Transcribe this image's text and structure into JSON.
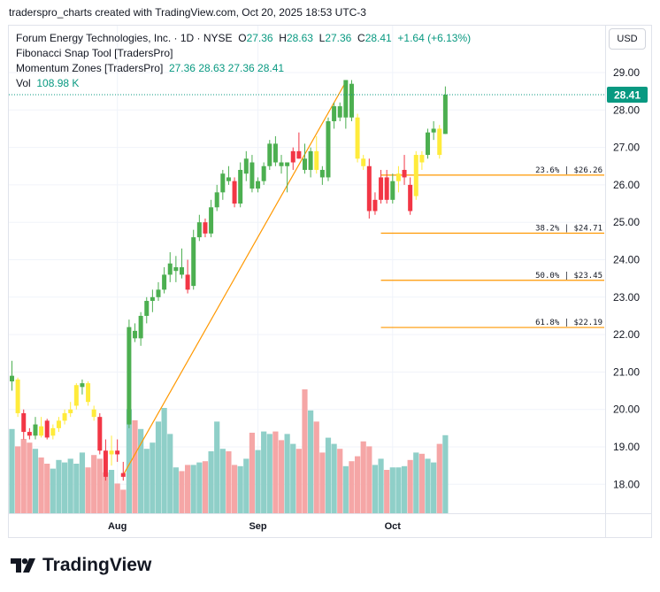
{
  "caption": "traderspro_charts created with TradingView.com, Oct 20, 2025 18:53 UTC-3",
  "legend": {
    "symbol": "Forum Energy Technologies, Inc. · 1D · NYSE",
    "o_label": "O",
    "o_value": "27.36",
    "h_label": "H",
    "h_value": "28.63",
    "l_label": "L",
    "l_value": "27.36",
    "c_label": "C",
    "c_value": "28.41",
    "change": "+1.64 (+6.13%)",
    "indicator1": "Fibonacci Snap Tool [TradersPro]",
    "indicator2": "Momentum Zones [TradersPro]",
    "indicator2_values": "27.36  28.63  27.36  28.41",
    "vol_label": "Vol",
    "vol_value": "108.98 K"
  },
  "currency": "USD",
  "brand": "TradingView",
  "colors": {
    "up": "#4caf50",
    "down": "#f23645",
    "neutral": "#ffeb3b",
    "vol_up": "#8fcfc8",
    "vol_down": "#f5a6a6",
    "fib": "#ff9800",
    "last_price": "#089981"
  },
  "chart_data": {
    "type": "candlestick",
    "ylim": [
      17.2,
      29.8
    ],
    "y_ticks": [
      "29.00",
      "28.00",
      "27.00",
      "26.00",
      "25.00",
      "24.00",
      "23.00",
      "22.00",
      "21.00",
      "20.00",
      "19.00",
      "18.00"
    ],
    "x_ticks": [
      {
        "label": "Aug",
        "bar": 18
      },
      {
        "label": "Sep",
        "bar": 42
      },
      {
        "label": "Oct",
        "bar": 65
      }
    ],
    "last_price": "28.41",
    "candles": [
      {
        "o": 20.75,
        "h": 21.3,
        "l": 20.5,
        "c": 20.9,
        "z": "g",
        "v": 0.68
      },
      {
        "o": 20.8,
        "h": 20.85,
        "l": 19.8,
        "c": 19.9,
        "z": "y",
        "v": 0.54
      },
      {
        "o": 19.9,
        "h": 20.0,
        "l": 19.2,
        "c": 19.4,
        "z": "r",
        "v": 0.6
      },
      {
        "o": 19.4,
        "h": 19.5,
        "l": 19.2,
        "c": 19.3,
        "z": "r",
        "v": 0.57
      },
      {
        "o": 19.3,
        "h": 19.8,
        "l": 19.2,
        "c": 19.6,
        "z": "g",
        "v": 0.52
      },
      {
        "o": 19.55,
        "h": 19.8,
        "l": 19.25,
        "c": 19.3,
        "z": "y",
        "v": 0.45
      },
      {
        "o": 19.7,
        "h": 19.75,
        "l": 19.2,
        "c": 19.25,
        "z": "r",
        "v": 0.4
      },
      {
        "o": 19.3,
        "h": 19.6,
        "l": 19.2,
        "c": 19.5,
        "z": "y",
        "v": 0.36
      },
      {
        "o": 19.5,
        "h": 19.8,
        "l": 19.4,
        "c": 19.7,
        "z": "y",
        "v": 0.43
      },
      {
        "o": 19.7,
        "h": 20.0,
        "l": 19.6,
        "c": 19.9,
        "z": "y",
        "v": 0.41
      },
      {
        "o": 19.9,
        "h": 20.2,
        "l": 19.8,
        "c": 20.0,
        "z": "y",
        "v": 0.44
      },
      {
        "o": 20.1,
        "h": 20.7,
        "l": 20.0,
        "c": 20.65,
        "z": "y",
        "v": 0.4
      },
      {
        "o": 20.6,
        "h": 20.8,
        "l": 20.4,
        "c": 20.7,
        "z": "g",
        "v": 0.49
      },
      {
        "o": 20.7,
        "h": 20.75,
        "l": 20.1,
        "c": 20.2,
        "z": "y",
        "v": 0.37
      },
      {
        "o": 20.0,
        "h": 20.1,
        "l": 19.7,
        "c": 19.8,
        "z": "y",
        "v": 0.47
      },
      {
        "o": 19.8,
        "h": 19.9,
        "l": 18.8,
        "c": 18.9,
        "z": "r",
        "v": 0.44
      },
      {
        "o": 18.9,
        "h": 19.2,
        "l": 18.1,
        "c": 18.2,
        "z": "r",
        "v": 0.33
      },
      {
        "o": 18.8,
        "h": 19.3,
        "l": 18.5,
        "c": 18.9,
        "z": "y",
        "v": 0.35
      },
      {
        "o": 18.9,
        "h": 19.2,
        "l": 18.6,
        "c": 18.8,
        "z": "r",
        "v": 0.24
      },
      {
        "o": 18.3,
        "h": 18.6,
        "l": 18.1,
        "c": 18.2,
        "z": "r",
        "v": 0.19
      },
      {
        "o": 19.6,
        "h": 22.4,
        "l": 19.5,
        "c": 22.2,
        "z": "g",
        "v": 0.84
      },
      {
        "o": 22.1,
        "h": 22.3,
        "l": 21.8,
        "c": 21.9,
        "z": "g",
        "v": 0.75
      },
      {
        "o": 21.9,
        "h": 22.6,
        "l": 21.7,
        "c": 22.5,
        "z": "g",
        "v": 0.68
      },
      {
        "o": 22.5,
        "h": 23.0,
        "l": 22.3,
        "c": 22.9,
        "z": "g",
        "v": 0.52
      },
      {
        "o": 22.9,
        "h": 23.2,
        "l": 22.6,
        "c": 23.0,
        "z": "g",
        "v": 0.57
      },
      {
        "o": 23.0,
        "h": 23.4,
        "l": 22.9,
        "c": 23.2,
        "z": "g",
        "v": 0.74
      },
      {
        "o": 23.2,
        "h": 23.8,
        "l": 23.1,
        "c": 23.6,
        "z": "g",
        "v": 0.85
      },
      {
        "o": 23.6,
        "h": 24.2,
        "l": 23.4,
        "c": 23.9,
        "z": "g",
        "v": 0.64
      },
      {
        "o": 23.7,
        "h": 24.1,
        "l": 23.4,
        "c": 23.8,
        "z": "g",
        "v": 0.37
      },
      {
        "o": 23.8,
        "h": 24.3,
        "l": 23.5,
        "c": 23.6,
        "z": "g",
        "v": 0.34
      },
      {
        "o": 23.6,
        "h": 24.0,
        "l": 23.1,
        "c": 23.2,
        "z": "r",
        "v": 0.39
      },
      {
        "o": 23.3,
        "h": 24.8,
        "l": 23.2,
        "c": 24.6,
        "z": "g",
        "v": 0.39
      },
      {
        "o": 24.6,
        "h": 25.2,
        "l": 24.5,
        "c": 25.0,
        "z": "g",
        "v": 0.41
      },
      {
        "o": 25.0,
        "h": 25.1,
        "l": 24.6,
        "c": 24.7,
        "z": "r",
        "v": 0.42
      },
      {
        "o": 24.7,
        "h": 25.6,
        "l": 24.6,
        "c": 25.4,
        "z": "g",
        "v": 0.5
      },
      {
        "o": 25.4,
        "h": 26.0,
        "l": 25.3,
        "c": 25.8,
        "z": "g",
        "v": 0.74
      },
      {
        "o": 25.8,
        "h": 26.4,
        "l": 25.6,
        "c": 26.3,
        "z": "g",
        "v": 0.52
      },
      {
        "o": 26.2,
        "h": 26.5,
        "l": 26.0,
        "c": 26.1,
        "z": "g",
        "v": 0.5
      },
      {
        "o": 26.1,
        "h": 26.2,
        "l": 25.4,
        "c": 25.5,
        "z": "r",
        "v": 0.39
      },
      {
        "o": 25.5,
        "h": 26.6,
        "l": 25.4,
        "c": 26.4,
        "z": "g",
        "v": 0.38
      },
      {
        "o": 26.3,
        "h": 26.9,
        "l": 26.1,
        "c": 26.7,
        "z": "g",
        "v": 0.44
      },
      {
        "o": 26.6,
        "h": 26.8,
        "l": 25.8,
        "c": 25.9,
        "z": "g",
        "v": 0.65
      },
      {
        "o": 25.9,
        "h": 26.2,
        "l": 25.8,
        "c": 26.1,
        "z": "g",
        "v": 0.51
      },
      {
        "o": 26.1,
        "h": 26.6,
        "l": 26.0,
        "c": 26.5,
        "z": "g",
        "v": 0.66
      },
      {
        "o": 26.5,
        "h": 27.2,
        "l": 26.4,
        "c": 27.1,
        "z": "g",
        "v": 0.64
      },
      {
        "o": 27.1,
        "h": 27.3,
        "l": 26.5,
        "c": 26.6,
        "z": "g",
        "v": 0.66
      },
      {
        "o": 26.6,
        "h": 26.8,
        "l": 26.3,
        "c": 26.5,
        "z": "g",
        "v": 0.59
      },
      {
        "o": 26.5,
        "h": 26.6,
        "l": 25.8,
        "c": 26.6,
        "z": "g",
        "v": 0.64
      },
      {
        "o": 26.6,
        "h": 27.0,
        "l": 26.4,
        "c": 26.9,
        "z": "r",
        "v": 0.56
      },
      {
        "o": 26.9,
        "h": 27.4,
        "l": 26.7,
        "c": 26.7,
        "z": "r",
        "v": 0.52
      },
      {
        "o": 26.7,
        "h": 27.1,
        "l": 26.3,
        "c": 26.4,
        "z": "g",
        "v": 1.0
      },
      {
        "o": 26.4,
        "h": 27.0,
        "l": 26.2,
        "c": 26.9,
        "z": "g",
        "v": 0.83
      },
      {
        "o": 26.9,
        "h": 27.3,
        "l": 26.3,
        "c": 26.4,
        "z": "y",
        "v": 0.74
      },
      {
        "o": 26.4,
        "h": 26.5,
        "l": 26.0,
        "c": 26.2,
        "z": "g",
        "v": 0.49
      },
      {
        "o": 26.2,
        "h": 27.8,
        "l": 26.1,
        "c": 27.7,
        "z": "g",
        "v": 0.61
      },
      {
        "o": 27.7,
        "h": 28.2,
        "l": 27.5,
        "c": 28.1,
        "z": "g",
        "v": 0.56
      },
      {
        "o": 28.1,
        "h": 28.2,
        "l": 27.7,
        "c": 27.8,
        "z": "g",
        "v": 0.52
      },
      {
        "o": 27.8,
        "h": 28.8,
        "l": 27.5,
        "c": 28.8,
        "z": "g",
        "v": 0.38
      },
      {
        "o": 28.7,
        "h": 28.8,
        "l": 27.7,
        "c": 27.8,
        "z": "g",
        "v": 0.42
      },
      {
        "o": 27.8,
        "h": 27.9,
        "l": 26.6,
        "c": 26.7,
        "z": "y",
        "v": 0.46
      },
      {
        "o": 26.7,
        "h": 26.8,
        "l": 26.4,
        "c": 26.5,
        "z": "y",
        "v": 0.58
      },
      {
        "o": 26.5,
        "h": 26.7,
        "l": 25.1,
        "c": 25.3,
        "z": "r",
        "v": 0.54
      },
      {
        "o": 25.3,
        "h": 25.8,
        "l": 25.2,
        "c": 25.6,
        "z": "r",
        "v": 0.39
      },
      {
        "o": 25.6,
        "h": 26.4,
        "l": 25.5,
        "c": 26.2,
        "z": "r",
        "v": 0.44
      },
      {
        "o": 26.2,
        "h": 26.4,
        "l": 25.5,
        "c": 25.6,
        "z": "r",
        "v": 0.35
      },
      {
        "o": 25.6,
        "h": 26.3,
        "l": 25.5,
        "c": 26.1,
        "z": "g",
        "v": 0.37
      },
      {
        "o": 26.1,
        "h": 26.5,
        "l": 25.8,
        "c": 26.3,
        "z": "y",
        "v": 0.37
      },
      {
        "o": 26.2,
        "h": 26.8,
        "l": 26.0,
        "c": 26.4,
        "z": "r",
        "v": 0.38
      },
      {
        "o": 26.0,
        "h": 26.2,
        "l": 25.2,
        "c": 25.3,
        "z": "r",
        "v": 0.43
      },
      {
        "o": 25.7,
        "h": 26.9,
        "l": 25.6,
        "c": 26.8,
        "z": "y",
        "v": 0.49
      },
      {
        "o": 26.8,
        "h": 26.9,
        "l": 26.4,
        "c": 26.6,
        "z": "y",
        "v": 0.48
      },
      {
        "o": 26.8,
        "h": 27.5,
        "l": 26.7,
        "c": 27.4,
        "z": "g",
        "v": 0.44
      },
      {
        "o": 27.4,
        "h": 27.7,
        "l": 27.2,
        "c": 27.5,
        "z": "g",
        "v": 0.41
      },
      {
        "o": 27.5,
        "h": 27.6,
        "l": 26.7,
        "c": 26.8,
        "z": "y",
        "v": 0.56
      },
      {
        "o": 27.36,
        "h": 28.63,
        "l": 27.36,
        "c": 28.41,
        "z": "g",
        "v": 0.63
      }
    ],
    "fib_line": {
      "from_bar": 19,
      "from_price": 18.25,
      "to_bar": 57,
      "to_price": 28.75
    },
    "fib_levels": [
      {
        "label": "23.6% | $26.26",
        "price": 26.26
      },
      {
        "label": "38.2% | $24.71",
        "price": 24.71
      },
      {
        "label": "50.0% | $23.45",
        "price": 23.45
      },
      {
        "label": "61.8% | $22.19",
        "price": 22.19
      }
    ],
    "fib_start_bar": 63,
    "x_axis_label": "",
    "y_axis_label": ""
  }
}
